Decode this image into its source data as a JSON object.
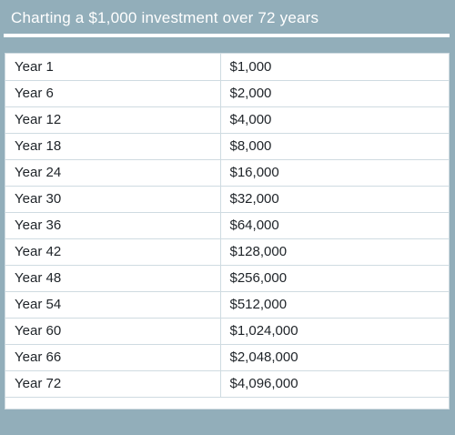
{
  "title": "Charting a $1,000 investment over 72 years",
  "chart_data": {
    "type": "table",
    "title": "Charting a $1,000 investment over 72 years",
    "columns": [
      "",
      ""
    ],
    "rows": [
      {
        "year": "Year 1",
        "amount": "$1,000",
        "value": 1000
      },
      {
        "year": "Year 6",
        "amount": "$2,000",
        "value": 2000
      },
      {
        "year": "Year 12",
        "amount": "$4,000",
        "value": 4000
      },
      {
        "year": "Year 18",
        "amount": "$8,000",
        "value": 8000
      },
      {
        "year": "Year 24",
        "amount": "$16,000",
        "value": 16000
      },
      {
        "year": "Year 30",
        "amount": "$32,000",
        "value": 32000
      },
      {
        "year": "Year 36",
        "amount": "$64,000",
        "value": 64000
      },
      {
        "year": "Year 42",
        "amount": "$128,000",
        "value": 128000
      },
      {
        "year": "Year 48",
        "amount": "$256,000",
        "value": 256000
      },
      {
        "year": "Year 54",
        "amount": "$512,000",
        "value": 512000
      },
      {
        "year": "Year 60",
        "amount": "$1,024,000",
        "value": 1024000
      },
      {
        "year": "Year 66",
        "amount": "$2,048,000",
        "value": 2048000
      },
      {
        "year": "Year 72",
        "amount": "$4,096,000",
        "value": 4096000
      }
    ]
  },
  "colors": {
    "panel_background": "#92aeba",
    "title_text": "#ffffff",
    "table_background": "#ffffff",
    "grid_line": "#cfdbe1",
    "cell_text": "#1e2328"
  }
}
